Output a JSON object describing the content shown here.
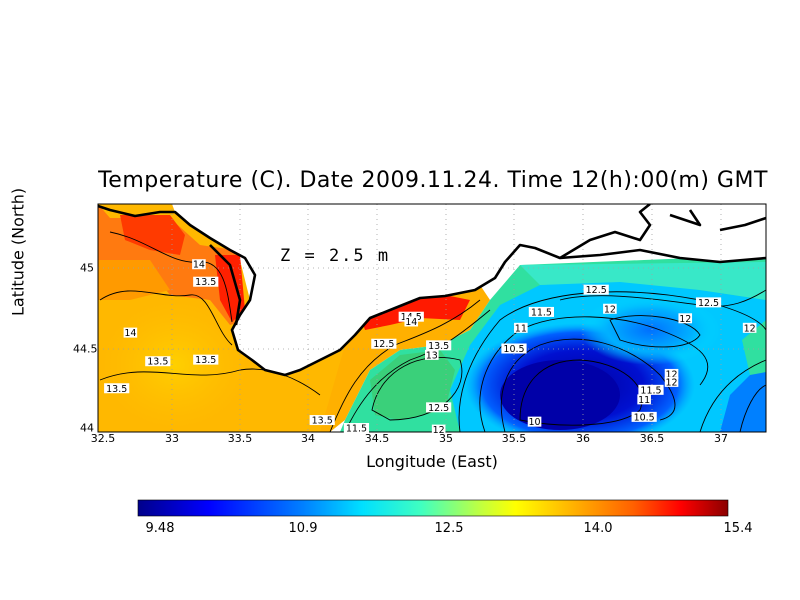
{
  "title": "Temperature (C). Date 2009.11.24. Time 12(h):00(m) GMT",
  "depth_label": "Z = 2.5 m",
  "x_axis": {
    "label": "Longitude (East)",
    "ticks": [
      "32.5",
      "33",
      "33.5",
      "34",
      "34.5",
      "35",
      "35.5",
      "36",
      "36.5",
      "37"
    ]
  },
  "y_axis": {
    "label": "Latitude (North)",
    "ticks": [
      "44",
      "44.5",
      "45"
    ]
  },
  "colorbar": {
    "labels": [
      "9.48",
      "10.9",
      "12.5",
      "14.0",
      "15.4"
    ],
    "colors": [
      "#00008b",
      "#0000ff",
      "#0080ff",
      "#00e0ff",
      "#40ffc0",
      "#c0ff40",
      "#ffff00",
      "#ffb000",
      "#ff6000",
      "#ff0000",
      "#8b0000"
    ]
  },
  "contour_labels": [
    {
      "text": "14",
      "lon": 32.7,
      "lat": 44.6
    },
    {
      "text": "14",
      "lon": 33.2,
      "lat": 45.03
    },
    {
      "text": "13.5",
      "lon": 33.25,
      "lat": 44.92
    },
    {
      "text": "13.5",
      "lon": 32.6,
      "lat": 44.25
    },
    {
      "text": "13.5",
      "lon": 32.9,
      "lat": 44.42
    },
    {
      "text": "13.5",
      "lon": 33.25,
      "lat": 44.43
    },
    {
      "text": "13.5",
      "lon": 34.1,
      "lat": 44.05
    },
    {
      "text": "14.5",
      "lon": 34.75,
      "lat": 44.7
    },
    {
      "text": "14",
      "lon": 34.75,
      "lat": 44.67
    },
    {
      "text": "12.5",
      "lon": 34.55,
      "lat": 44.53
    },
    {
      "text": "13.5",
      "lon": 34.95,
      "lat": 44.52
    },
    {
      "text": "13",
      "lon": 34.9,
      "lat": 44.46
    },
    {
      "text": "12.5",
      "lon": 34.95,
      "lat": 44.13
    },
    {
      "text": "11.5",
      "lon": 34.35,
      "lat": 44.0
    },
    {
      "text": "12",
      "lon": 34.95,
      "lat": 43.99
    },
    {
      "text": "12.5",
      "lon": 36.1,
      "lat": 44.87
    },
    {
      "text": "11.5",
      "lon": 35.7,
      "lat": 44.73
    },
    {
      "text": "12",
      "lon": 36.2,
      "lat": 44.75
    },
    {
      "text": "12.5",
      "lon": 36.92,
      "lat": 44.79
    },
    {
      "text": "12",
      "lon": 36.75,
      "lat": 44.69
    },
    {
      "text": "12",
      "lon": 37.22,
      "lat": 44.63
    },
    {
      "text": "11",
      "lon": 35.55,
      "lat": 44.63
    },
    {
      "text": "10.5",
      "lon": 35.5,
      "lat": 44.5
    },
    {
      "text": "12",
      "lon": 36.65,
      "lat": 44.34
    },
    {
      "text": "12",
      "lon": 36.65,
      "lat": 44.29
    },
    {
      "text": "11.5",
      "lon": 36.5,
      "lat": 44.24
    },
    {
      "text": "11",
      "lon": 36.45,
      "lat": 44.18
    },
    {
      "text": "10.5",
      "lon": 36.45,
      "lat": 44.07
    },
    {
      "text": "10",
      "lon": 35.65,
      "lat": 44.04
    }
  ]
}
